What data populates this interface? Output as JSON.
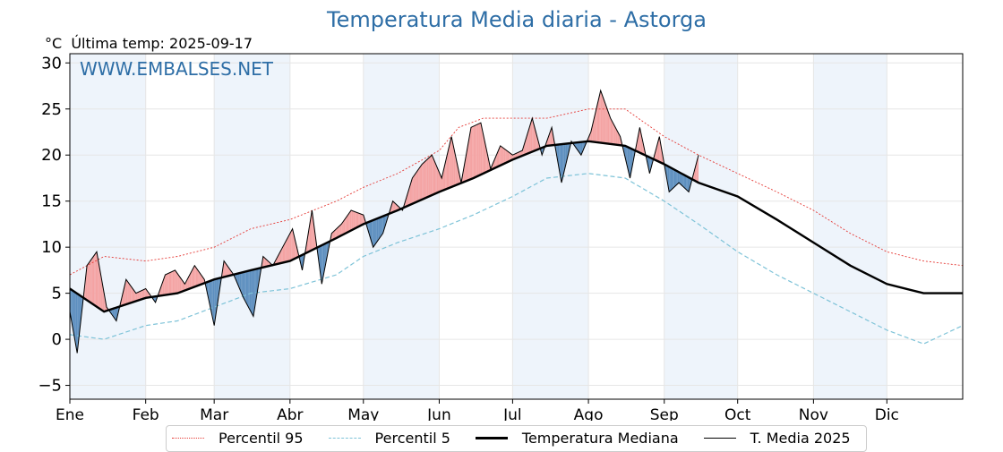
{
  "header": {
    "title": "Temperatura Media diaria - Astorga",
    "unit": "°C",
    "last_temp": "Última temp: 2025-09-17",
    "watermark": "WWW.EMBALSES.NET"
  },
  "legend": {
    "p95": "Percentil 95",
    "p5": "Percentil 5",
    "median": "Temperatura Mediana",
    "current": "T. Media 2025"
  },
  "colors": {
    "p95": "#e53935",
    "p5": "#7ec3d8",
    "median": "#000000",
    "current": "#000000",
    "above_fill": "#f4a3a3",
    "below_fill": "#5d8fbf",
    "month_band": "#eef4fb",
    "title": "#2e6ea6"
  },
  "chart_data": {
    "type": "line",
    "title": "Temperatura Media diaria - Astorga",
    "ylabel": "°C",
    "xlabel": "",
    "ylim": [
      -6.5,
      31
    ],
    "xlim": [
      1,
      366
    ],
    "y_ticks": [
      30,
      25,
      20,
      15,
      10,
      5,
      0,
      -5
    ],
    "y_tick_labels": [
      "30",
      "25",
      "20",
      "15",
      "10",
      "5",
      "0",
      "−5"
    ],
    "x_ticks": [
      {
        "label": "Ene",
        "day": 1
      },
      {
        "label": "Feb",
        "day": 32
      },
      {
        "label": "Mar",
        "day": 60
      },
      {
        "label": "Abr",
        "day": 91
      },
      {
        "label": "May",
        "day": 121
      },
      {
        "label": "Jun",
        "day": 152
      },
      {
        "label": "Jul",
        "day": 182
      },
      {
        "label": "Ago",
        "day": 213
      },
      {
        "label": "Sep",
        "day": 244
      },
      {
        "label": "Oct",
        "day": 274
      },
      {
        "label": "Nov",
        "day": 305
      },
      {
        "label": "Dic",
        "day": 335
      }
    ],
    "grid": true,
    "legend_position": "bottom",
    "series": [
      {
        "name": "Percentil 95",
        "key": "p95",
        "style": "dotted",
        "points": [
          [
            1,
            7
          ],
          [
            15,
            9
          ],
          [
            32,
            8.5
          ],
          [
            45,
            9
          ],
          [
            60,
            10
          ],
          [
            75,
            12
          ],
          [
            91,
            13
          ],
          [
            110,
            15
          ],
          [
            121,
            16.5
          ],
          [
            135,
            18
          ],
          [
            152,
            20.5
          ],
          [
            160,
            23
          ],
          [
            170,
            24
          ],
          [
            182,
            24
          ],
          [
            196,
            24
          ],
          [
            213,
            25
          ],
          [
            228,
            25
          ],
          [
            244,
            22
          ],
          [
            258,
            20
          ],
          [
            274,
            18
          ],
          [
            290,
            16
          ],
          [
            305,
            14
          ],
          [
            320,
            11.5
          ],
          [
            335,
            9.5
          ],
          [
            350,
            8.5
          ],
          [
            366,
            8
          ]
        ]
      },
      {
        "name": "Percentil 5",
        "key": "p5",
        "style": "dashed",
        "points": [
          [
            1,
            0.5
          ],
          [
            15,
            0
          ],
          [
            32,
            1.5
          ],
          [
            45,
            2
          ],
          [
            60,
            3.5
          ],
          [
            75,
            5
          ],
          [
            91,
            5.5
          ],
          [
            110,
            7
          ],
          [
            121,
            9
          ],
          [
            135,
            10.5
          ],
          [
            152,
            12
          ],
          [
            166,
            13.5
          ],
          [
            182,
            15.5
          ],
          [
            196,
            17.5
          ],
          [
            213,
            18
          ],
          [
            228,
            17.5
          ],
          [
            244,
            15
          ],
          [
            258,
            12.5
          ],
          [
            274,
            9.5
          ],
          [
            290,
            7
          ],
          [
            305,
            5
          ],
          [
            320,
            3
          ],
          [
            335,
            1
          ],
          [
            350,
            -0.5
          ],
          [
            366,
            1.5
          ]
        ]
      },
      {
        "name": "Temperatura Mediana",
        "key": "median",
        "style": "solid-thick",
        "points": [
          [
            1,
            5.5
          ],
          [
            15,
            3
          ],
          [
            32,
            4.5
          ],
          [
            45,
            5
          ],
          [
            60,
            6.5
          ],
          [
            75,
            7.5
          ],
          [
            91,
            8.5
          ],
          [
            110,
            11
          ],
          [
            121,
            12.5
          ],
          [
            135,
            14
          ],
          [
            152,
            16
          ],
          [
            166,
            17.5
          ],
          [
            182,
            19.5
          ],
          [
            196,
            21
          ],
          [
            213,
            21.5
          ],
          [
            228,
            21
          ],
          [
            244,
            19
          ],
          [
            258,
            17
          ],
          [
            274,
            15.5
          ],
          [
            290,
            13
          ],
          [
            305,
            10.5
          ],
          [
            320,
            8
          ],
          [
            335,
            6
          ],
          [
            350,
            5
          ],
          [
            366,
            5
          ]
        ]
      },
      {
        "name": "T. Media 2025",
        "key": "current",
        "style": "solid-thin",
        "points": [
          [
            1,
            3
          ],
          [
            4,
            -1.5
          ],
          [
            8,
            8
          ],
          [
            12,
            9.5
          ],
          [
            16,
            3.5
          ],
          [
            20,
            2
          ],
          [
            24,
            6.5
          ],
          [
            28,
            5
          ],
          [
            32,
            5.5
          ],
          [
            36,
            4
          ],
          [
            40,
            7
          ],
          [
            44,
            7.5
          ],
          [
            48,
            6
          ],
          [
            52,
            8
          ],
          [
            56,
            6.5
          ],
          [
            60,
            1.5
          ],
          [
            64,
            8.5
          ],
          [
            68,
            7
          ],
          [
            72,
            4.5
          ],
          [
            76,
            2.5
          ],
          [
            80,
            9
          ],
          [
            84,
            8
          ],
          [
            88,
            10
          ],
          [
            92,
            12
          ],
          [
            96,
            7.5
          ],
          [
            100,
            14
          ],
          [
            104,
            6
          ],
          [
            108,
            11.5
          ],
          [
            112,
            12.5
          ],
          [
            116,
            14
          ],
          [
            121,
            13.5
          ],
          [
            125,
            10
          ],
          [
            129,
            11.5
          ],
          [
            133,
            15
          ],
          [
            137,
            14
          ],
          [
            141,
            17.5
          ],
          [
            145,
            19
          ],
          [
            149,
            20
          ],
          [
            153,
            17.5
          ],
          [
            157,
            22
          ],
          [
            161,
            17
          ],
          [
            165,
            23
          ],
          [
            169,
            23.5
          ],
          [
            173,
            18.5
          ],
          [
            177,
            21
          ],
          [
            182,
            20
          ],
          [
            186,
            20.5
          ],
          [
            190,
            24
          ],
          [
            194,
            20
          ],
          [
            198,
            23
          ],
          [
            202,
            17
          ],
          [
            206,
            21.5
          ],
          [
            210,
            20
          ],
          [
            214,
            22.5
          ],
          [
            218,
            27
          ],
          [
            222,
            24
          ],
          [
            226,
            22
          ],
          [
            230,
            17.5
          ],
          [
            234,
            23
          ],
          [
            238,
            18
          ],
          [
            242,
            22
          ],
          [
            246,
            16
          ],
          [
            250,
            17
          ],
          [
            254,
            16
          ],
          [
            258,
            20
          ]
        ]
      }
    ]
  }
}
